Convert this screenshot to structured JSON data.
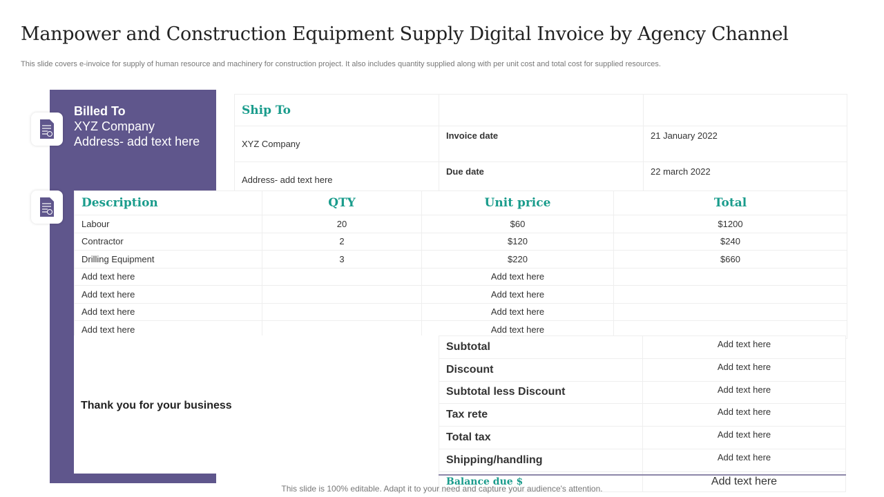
{
  "title": "Manpower and Construction Equipment Supply Digital Invoice by Agency Channel",
  "subtitle": "This slide covers e-invoice for supply of human resource and machinery for construction project. It also includes quantity supplied along with per unit cost and total cost for supplied resources.",
  "billed": {
    "heading": "Billed To",
    "company": "XYZ Company",
    "address": "Address- add text here"
  },
  "ship": {
    "heading": "Ship To",
    "company": "XYZ  Company",
    "address": "Address- add text here",
    "invoice_date_label": "Invoice date",
    "invoice_date": "21 January  2022",
    "due_date_label": "Due date",
    "due_date": "22 march 2022"
  },
  "items": {
    "headers": [
      "Description",
      "QTY",
      "Unit price",
      "Total"
    ],
    "rows": [
      [
        "Labour",
        "20",
        "$60",
        "$1200"
      ],
      [
        "Contractor",
        "2",
        "$120",
        "$240"
      ],
      [
        "Drilling Equipment",
        "3",
        "$220",
        "$660"
      ],
      [
        "Add text here",
        "",
        "Add text here",
        ""
      ],
      [
        "Add text here",
        "",
        "Add text here",
        ""
      ],
      [
        "Add text here",
        "",
        "Add text here",
        ""
      ],
      [
        "Add text here",
        "",
        "Add text here",
        ""
      ]
    ]
  },
  "thanks": "Thank you for your business",
  "summary": {
    "rows": [
      [
        "Subtotal",
        "Add text here"
      ],
      [
        "Discount",
        "Add text here"
      ],
      [
        "Subtotal less Discount",
        "Add text here"
      ],
      [
        "Tax rete",
        "Add text here"
      ],
      [
        "Total tax",
        "Add text here"
      ],
      [
        "Shipping/handling",
        "Add text here"
      ]
    ],
    "balance_label": "Balance due   $",
    "balance_value": "Add text here"
  },
  "footer": "This slide is 100% editable. Adapt it to your need and capture your audience's attention.",
  "colors": {
    "panel": "#5f568c",
    "accent": "#1a9c8c"
  },
  "icons": [
    "document-icon",
    "document-icon"
  ]
}
